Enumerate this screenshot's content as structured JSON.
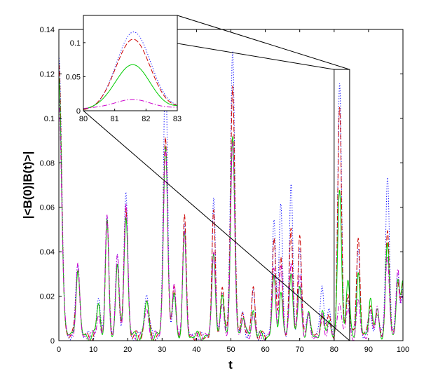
{
  "chart_data": {
    "type": "line",
    "title": "",
    "xlabel": "t",
    "ylabel": "|<B(0)|B(t)>|",
    "xlim": [
      0,
      100
    ],
    "ylim": [
      0,
      0.14
    ],
    "xticks": [
      0,
      10,
      20,
      30,
      40,
      50,
      60,
      70,
      80,
      90,
      100
    ],
    "xtick_labels": [
      "0",
      "10",
      "20",
      "30",
      "40",
      "50",
      "60",
      "70",
      "80",
      "90",
      "100"
    ],
    "yticks": [
      0,
      0.02,
      0.04,
      0.06,
      0.08,
      0.1,
      0.12,
      0.14
    ],
    "ytick_labels": [
      "0",
      "0.02",
      "0.04",
      "0.06",
      "0.08",
      "0.1",
      "0.12",
      "0.14"
    ],
    "grid": false,
    "legend": "none",
    "series_styles": [
      {
        "color": "#0000ff",
        "dash": "dotted"
      },
      {
        "color": "#cc0000",
        "dash": "dashed"
      },
      {
        "color": "#00cc00",
        "dash": "solid"
      },
      {
        "color": "#cc00cc",
        "dash": "dashdot"
      }
    ],
    "peaks": [
      {
        "t": 0,
        "w": 0.8,
        "heights": [
          0.125,
          0.12,
          0.115,
          0.108
        ]
      },
      {
        "t": 5.5,
        "w": 0.55,
        "heights": [
          0.033,
          0.032,
          0.03,
          0.031
        ]
      },
      {
        "t": 11.5,
        "w": 0.5,
        "heights": [
          0.017,
          0.014,
          0.015,
          0.01
        ]
      },
      {
        "t": 14,
        "w": 0.5,
        "heights": [
          0.056,
          0.052,
          0.05,
          0.053
        ]
      },
      {
        "t": 17,
        "w": 0.5,
        "heights": [
          0.037,
          0.034,
          0.033,
          0.036
        ]
      },
      {
        "t": 19.5,
        "w": 0.55,
        "heights": [
          0.064,
          0.058,
          0.055,
          0.06
        ]
      },
      {
        "t": 25.5,
        "w": 0.6,
        "heights": [
          0.02,
          0.016,
          0.015,
          0.012
        ]
      },
      {
        "t": 31,
        "w": 0.6,
        "heights": [
          0.12,
          0.09,
          0.087,
          0.085
        ]
      },
      {
        "t": 33.5,
        "w": 0.5,
        "heights": [
          0.018,
          0.022,
          0.02,
          0.025
        ]
      },
      {
        "t": 36.5,
        "w": 0.5,
        "heights": [
          0.052,
          0.053,
          0.045,
          0.047
        ]
      },
      {
        "t": 45,
        "w": 0.5,
        "heights": [
          0.06,
          0.055,
          0.038,
          0.04
        ]
      },
      {
        "t": 47.5,
        "w": 0.5,
        "heights": [
          0.02,
          0.022,
          0.018,
          0.015
        ]
      },
      {
        "t": 50.5,
        "w": 0.6,
        "heights": [
          0.13,
          0.113,
          0.088,
          0.085
        ]
      },
      {
        "t": 53.5,
        "w": 0.5,
        "heights": [
          0.01,
          0.012,
          0.01,
          0.008
        ]
      },
      {
        "t": 56.5,
        "w": 0.5,
        "heights": [
          0.02,
          0.022,
          0.012,
          0.01
        ]
      },
      {
        "t": 62.5,
        "w": 0.5,
        "heights": [
          0.054,
          0.043,
          0.025,
          0.03
        ]
      },
      {
        "t": 64.5,
        "w": 0.5,
        "heights": [
          0.06,
          0.037,
          0.02,
          0.03
        ]
      },
      {
        "t": 67.5,
        "w": 0.5,
        "heights": [
          0.066,
          0.048,
          0.03,
          0.035
        ]
      },
      {
        "t": 70,
        "w": 0.5,
        "heights": [
          0.04,
          0.045,
          0.022,
          0.028
        ]
      },
      {
        "t": 72.5,
        "w": 0.5,
        "heights": [
          0.012,
          0.012,
          0.01,
          0.008
        ]
      },
      {
        "t": 76.5,
        "w": 0.5,
        "heights": [
          0.025,
          0.01,
          0.01,
          0.008
        ]
      },
      {
        "t": 78.5,
        "w": 0.5,
        "heights": [
          0.012,
          0.01,
          0.008,
          0.006
        ]
      },
      {
        "t": 81.6,
        "w": 0.55,
        "heights": [
          0.112,
          0.101,
          0.066,
          0.017
        ]
      },
      {
        "t": 84,
        "w": 0.5,
        "heights": [
          0.018,
          0.02,
          0.025,
          0.012
        ]
      },
      {
        "t": 87,
        "w": 0.5,
        "heights": [
          0.04,
          0.045,
          0.028,
          0.015
        ]
      },
      {
        "t": 90.5,
        "w": 0.5,
        "heights": [
          0.012,
          0.016,
          0.018,
          0.01
        ]
      },
      {
        "t": 92.5,
        "w": 0.5,
        "heights": [
          0.01,
          0.01,
          0.012,
          0.014
        ]
      },
      {
        "t": 95.5,
        "w": 0.55,
        "heights": [
          0.072,
          0.046,
          0.04,
          0.036
        ]
      },
      {
        "t": 98.5,
        "w": 0.5,
        "heights": [
          0.03,
          0.026,
          0.025,
          0.028
        ]
      },
      {
        "t": 100,
        "w": 0.5,
        "heights": [
          0.02,
          0.022,
          0.025,
          0.02
        ]
      }
    ],
    "inset": {
      "xlim": [
        80,
        83
      ],
      "ylim": [
        0,
        0.14
      ],
      "xticks": [
        80,
        81,
        82,
        83
      ],
      "xtick_labels": [
        "80",
        "81",
        "82",
        "83"
      ],
      "yticks": [
        0,
        0.05,
        0.1
      ],
      "ytick_labels": [
        "0",
        "0.05",
        "0.1"
      ],
      "zoom_region": {
        "x": [
          80,
          84.5
        ],
        "y": [
          0,
          0.122
        ]
      }
    }
  }
}
